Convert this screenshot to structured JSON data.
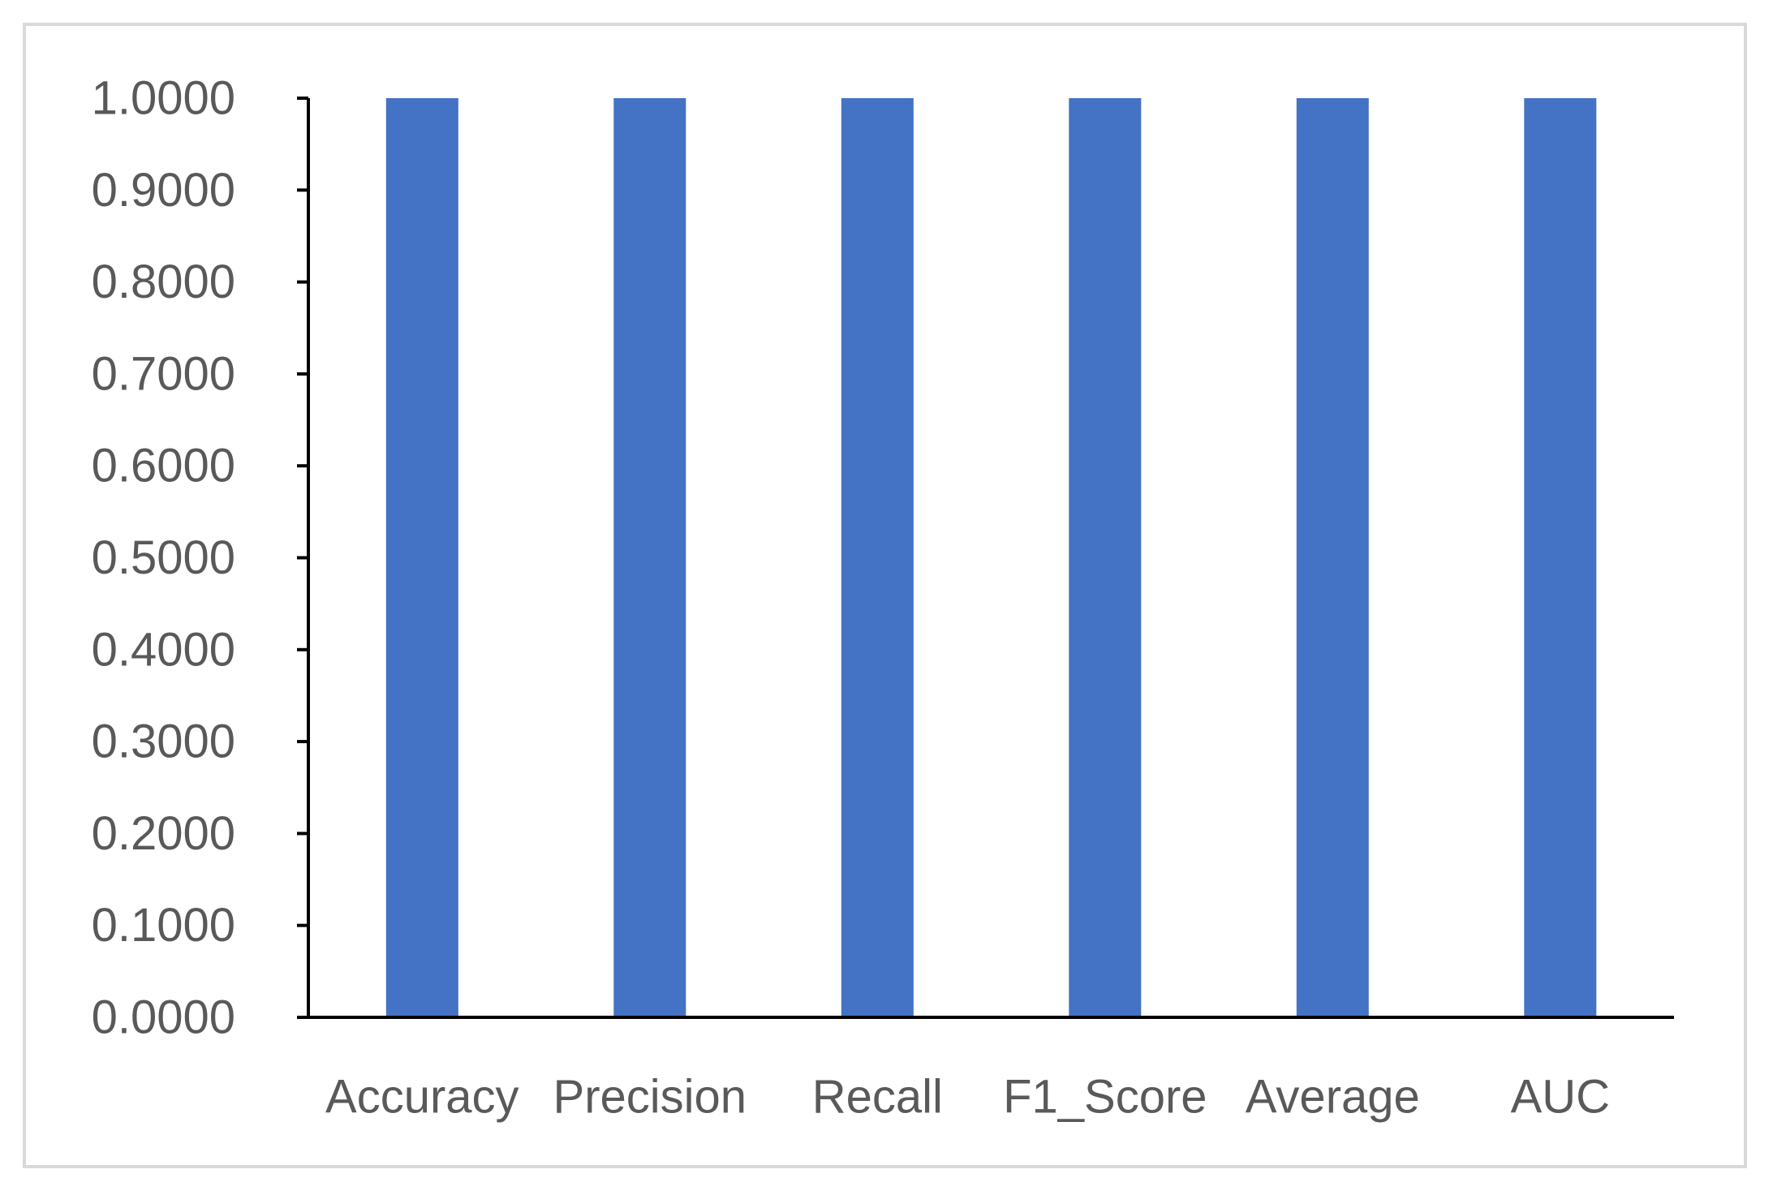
{
  "chart_data": {
    "type": "bar",
    "categories": [
      "Accuracy",
      "Precision",
      "Recall",
      "F1_Score",
      "Average",
      "AUC"
    ],
    "values": [
      1.0,
      1.0,
      1.0,
      1.0,
      1.0,
      1.0
    ],
    "title": "",
    "xlabel": "",
    "ylabel": "",
    "ylim": [
      0,
      1
    ],
    "y_ticks": [
      "0.0000",
      "0.1000",
      "0.2000",
      "0.3000",
      "0.4000",
      "0.5000",
      "0.6000",
      "0.7000",
      "0.8000",
      "0.9000",
      "1.0000"
    ],
    "grid": false,
    "legend": "none",
    "bar_color": "#4472C4",
    "axis_color": "#000000",
    "label_color": "#595959",
    "frame_color": "#D9D9D9"
  }
}
